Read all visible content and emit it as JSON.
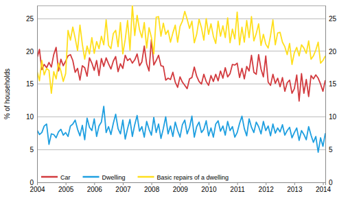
{
  "chart_data": {
    "type": "line",
    "y_label": "% of households",
    "categories": [
      "2004",
      null,
      null,
      null,
      null,
      null,
      null,
      null,
      null,
      null,
      null,
      null,
      "2005",
      null,
      null,
      null,
      null,
      null,
      null,
      null,
      null,
      null,
      null,
      null,
      "2006",
      null,
      null,
      null,
      null,
      null,
      null,
      null,
      null,
      null,
      null,
      null,
      "2007",
      null,
      null,
      null,
      null,
      null,
      null,
      null,
      null,
      null,
      null,
      null,
      "2008",
      null,
      null,
      null,
      null,
      null,
      null,
      null,
      null,
      null,
      null,
      null,
      "2009",
      null,
      null,
      null,
      null,
      null,
      null,
      null,
      null,
      null,
      null,
      null,
      "2010",
      null,
      null,
      null,
      null,
      null,
      null,
      null,
      null,
      null,
      null,
      null,
      "2011",
      null,
      null,
      null,
      null,
      null,
      null,
      null,
      null,
      null,
      null,
      null,
      "2012",
      null,
      null,
      null,
      null,
      null,
      null,
      null,
      null,
      null,
      null,
      null,
      "2013",
      null,
      null,
      null,
      null,
      null,
      null,
      null,
      null,
      null,
      null,
      null,
      "2014",
      null
    ],
    "series": [
      {
        "name": "Car",
        "color": "#d23a3e",
        "values": [
          19.0,
          20.3,
          17.2,
          18.0,
          17.5,
          18.3,
          17.6,
          19.5,
          20.6,
          17.0,
          18.8,
          17.8,
          18.5,
          19.3,
          19.5,
          18.6,
          16.8,
          17.4,
          15.6,
          17.8,
          17.5,
          16.2,
          19.0,
          18.2,
          17.1,
          18.6,
          16.3,
          18.9,
          17.7,
          19.0,
          18.1,
          17.3,
          18.5,
          19.2,
          16.9,
          18.1,
          17.4,
          19.4,
          18.6,
          18.9,
          18.2,
          18.7,
          19.6,
          17.8,
          18.4,
          20.8,
          18.1,
          17.0,
          21.8,
          17.9,
          18.6,
          19.4,
          17.8,
          17.7,
          15.6,
          15.9,
          15.7,
          16.8,
          15.3,
          14.5,
          16.1,
          15.3,
          14.8,
          14.3,
          15.8,
          16.0,
          17.6,
          16.2,
          15.4,
          15.0,
          16.5,
          15.4,
          14.8,
          16.3,
          15.4,
          16.5,
          15.5,
          17.0,
          15.9,
          17.5,
          16.1,
          16.6,
          18.0,
          17.9,
          18.2,
          16.0,
          17.4,
          15.8,
          17.7,
          17.0,
          19.4,
          16.8,
          16.5,
          19.5,
          17.3,
          16.1,
          19.3,
          15.3,
          14.8,
          16.5,
          15.1,
          15.9,
          14.6,
          16.0,
          13.9,
          15.2,
          15.6,
          13.6,
          14.3,
          16.4,
          12.4,
          16.6,
          13.6,
          15.7,
          13.1,
          16.3,
          15.8,
          16.4,
          15.9,
          15.0,
          13.9,
          15.6
        ]
      },
      {
        "name": "Dwelling",
        "color": "#1e9fe0",
        "values": [
          8.0,
          7.3,
          7.6,
          8.6,
          8.9,
          5.8,
          7.4,
          7.3,
          6.8,
          7.7,
          8.1,
          7.2,
          7.6,
          7.0,
          8.6,
          8.9,
          9.5,
          8.1,
          7.1,
          8.7,
          6.5,
          9.8,
          8.4,
          7.9,
          9.7,
          7.0,
          8.6,
          9.2,
          11.6,
          7.6,
          8.5,
          7.3,
          9.0,
          10.4,
          8.2,
          7.4,
          9.5,
          6.6,
          8.2,
          9.6,
          7.0,
          8.8,
          10.2,
          7.8,
          8.5,
          6.9,
          9.3,
          8.1,
          7.2,
          9.9,
          7.6,
          8.9,
          6.7,
          8.2,
          10.0,
          7.4,
          8.6,
          7.0,
          9.2,
          7.9,
          6.9,
          8.8,
          9.5,
          7.4,
          8.4,
          10.1,
          6.9,
          8.5,
          9.2,
          7.6,
          8.1,
          9.4,
          7.1,
          8.3,
          6.9,
          8.9,
          9.4,
          7.8,
          8.6,
          7.2,
          9.3,
          7.9,
          8.5,
          6.9,
          7.6,
          9.0,
          10.1,
          8.2,
          7.1,
          9.7,
          8.4,
          7.6,
          9.2,
          8.5,
          7.4,
          9.3,
          7.9,
          8.6,
          7.1,
          8.9,
          7.5,
          8.3,
          7.7,
          8.8,
          7.2,
          7.9,
          8.4,
          6.8,
          7.6,
          8.3,
          6.4,
          7.9,
          7.3,
          6.5,
          8.5,
          7.2,
          6.1,
          7.0,
          4.6,
          6.8,
          5.5,
          7.5
        ]
      },
      {
        "name": "Basic repairs of a dwelling",
        "color": "#ffdf1c",
        "values": [
          17.0,
          15.5,
          18.6,
          16.4,
          17.4,
          17.1,
          13.6,
          16.9,
          15.8,
          18.2,
          17.0,
          15.4,
          16.6,
          23.2,
          21.7,
          23.7,
          22.0,
          20.1,
          24.0,
          21.1,
          18.8,
          20.8,
          19.6,
          22.1,
          19.7,
          21.5,
          20.4,
          22.3,
          21.0,
          24.8,
          20.9,
          20.4,
          22.7,
          23.2,
          20.7,
          24.4,
          19.6,
          21.8,
          24.7,
          20.2,
          27.0,
          22.4,
          25.5,
          23.3,
          22.1,
          24.4,
          20.5,
          23.6,
          22.1,
          19.6,
          25.2,
          25.3,
          22.3,
          24.3,
          22.6,
          23.2,
          21.4,
          22.8,
          24.0,
          21.4,
          23.8,
          24.6,
          26.1,
          24.9,
          23.5,
          24.6,
          21.3,
          22.6,
          24.9,
          23.6,
          21.7,
          25.0,
          22.6,
          24.2,
          22.3,
          21.2,
          24.6,
          22.3,
          23.9,
          22.1,
          25.1,
          21.3,
          23.4,
          21.9,
          26.0,
          21.0,
          23.7,
          21.4,
          24.7,
          22.1,
          25.3,
          21.6,
          22.7,
          24.2,
          20.9,
          22.6,
          21.1,
          20.5,
          22.4,
          24.8,
          21.0,
          22.8,
          22.9,
          21.4,
          20.7,
          19.5,
          21.2,
          18.0,
          19.8,
          20.6,
          19.3,
          21.0,
          20.5,
          19.7,
          21.6,
          18.8,
          19.3,
          20.2,
          21.4,
          18.2,
          18.6,
          19.3
        ]
      }
    ],
    "ylim": [
      0,
      27
    ],
    "yticks": [
      0,
      5,
      10,
      15,
      20,
      25
    ],
    "grid": true,
    "legend": "lower left"
  }
}
